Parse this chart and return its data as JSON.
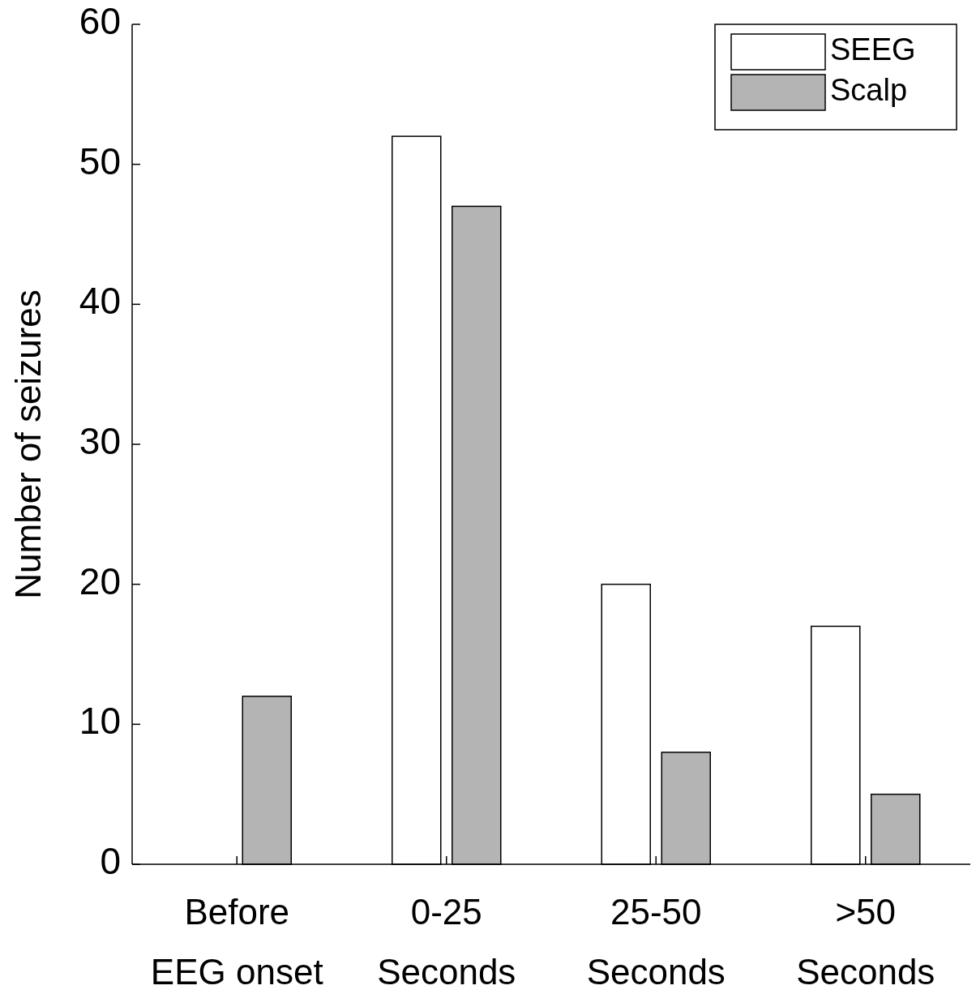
{
  "chart_data": {
    "type": "bar",
    "ylabel": "Number of seizures",
    "categories": [
      "Before\nEEG onset",
      "0-25\nSeconds",
      "25-50\nSeconds",
      ">50\nSeconds"
    ],
    "series": [
      {
        "name": "SEEG",
        "color": "#ffffff",
        "values": [
          0,
          52,
          20,
          17
        ]
      },
      {
        "name": "Scalp",
        "color": "#b4b4b4",
        "values": [
          12,
          47,
          8,
          5
        ]
      }
    ],
    "ylim": [
      0,
      60
    ],
    "yticks": [
      0,
      10,
      20,
      30,
      40,
      50,
      60
    ],
    "legend": "top right",
    "grid": false
  }
}
